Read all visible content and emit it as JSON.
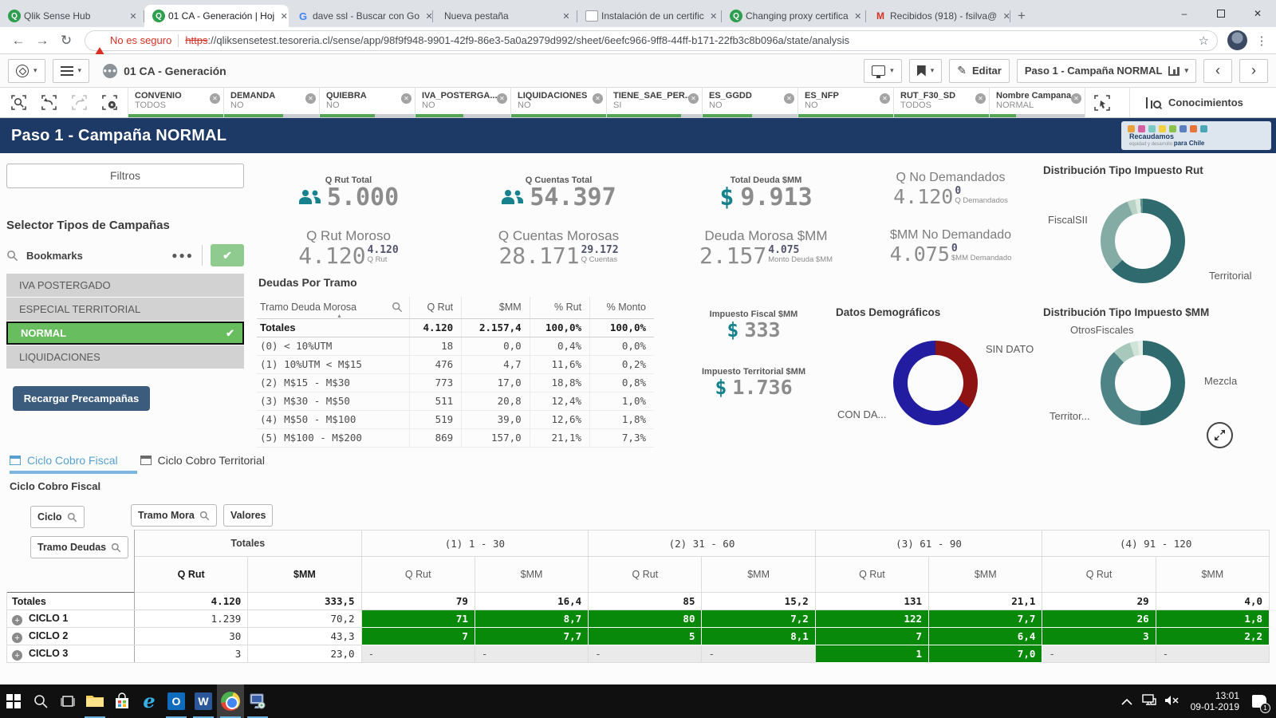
{
  "browser": {
    "tabs": [
      {
        "title": "Qlik Sense Hub",
        "icon": "qlik",
        "active": false
      },
      {
        "title": "01 CA - Generación | Hoj",
        "icon": "qlik",
        "active": true
      },
      {
        "title": "dave ssl - Buscar con Go",
        "icon": "google",
        "active": false
      },
      {
        "title": "Nueva pestaña",
        "icon": "none",
        "active": false
      },
      {
        "title": "Instalación de un certific",
        "icon": "doc",
        "active": false
      },
      {
        "title": "Changing proxy certifica",
        "icon": "qlik",
        "active": false
      },
      {
        "title": "Recibidos (918) - fsilva@",
        "icon": "gmail",
        "active": false
      }
    ],
    "security_warning": "No es seguro",
    "url_scheme": "https",
    "url_rest": "://qliksensetest.tesoreria.cl/sense/app/98f9f948-9901-42f9-86e3-5a0a2979d992/sheet/6eefc966-9ff8-44ff-b171-22fb3c8b096a/state/analysis"
  },
  "toolbar": {
    "app_title": "01 CA - Generación",
    "edit_label": "Editar",
    "sheet_label": "Paso 1 - Campaña NORMAL",
    "insights_label": "Conocimientos"
  },
  "selections": [
    {
      "field": "CONVENIO",
      "value": "TODOS",
      "bar": 100
    },
    {
      "field": "DEMANDA",
      "value": "NO",
      "bar": 62
    },
    {
      "field": "QUIEBRA",
      "value": "NO",
      "bar": 58
    },
    {
      "field": "IVA_POSTERGA...",
      "value": "NO",
      "bar": 50
    },
    {
      "field": "LIQUIDACIONES",
      "value": "NO",
      "bar": 100
    },
    {
      "field": "TIENE_SAE_PER...",
      "value": "SI",
      "bar": 78
    },
    {
      "field": "ES_GGDD",
      "value": "NO",
      "bar": 52
    },
    {
      "field": "ES_NFP",
      "value": "NO",
      "bar": 100
    },
    {
      "field": "RUT_F30_SD",
      "value": "TODOS",
      "bar": 100
    },
    {
      "field": "Nombre Campana",
      "value": "NORMAL",
      "bar": 28
    }
  ],
  "header": {
    "title": "Paso 1 - Campaña NORMAL",
    "logo_line1": "Recaudamos",
    "logo_line2": "equidad y desarrollo ",
    "logo_line3": "para Chile"
  },
  "sidebar": {
    "filtros_label": "Filtros",
    "selector_title": "Selector Tipos de Campañas",
    "bookmarks_label": "Bookmarks",
    "items": [
      {
        "label": "IVA POSTERGADO",
        "selected": false
      },
      {
        "label": "ESPECIAL TERRITORIAL",
        "selected": false
      },
      {
        "label": "NORMAL",
        "selected": true
      },
      {
        "label": "LIQUIDACIONES",
        "selected": false
      }
    ],
    "recargar_label": "Recargar Precampañas"
  },
  "kpis": {
    "q_rut_total": {
      "label": "Q Rut Total",
      "value": "5.000"
    },
    "q_rut_moroso": {
      "label": "Q Rut Moroso",
      "value": "4.120",
      "sup": "4.120",
      "sup_label": "Q Rut"
    },
    "q_cuentas_total": {
      "label": "Q Cuentas Total",
      "value": "54.397"
    },
    "q_cuentas_morosas": {
      "label": "Q Cuentas Morosas",
      "value": "28.171",
      "sup": "29.172",
      "sup_label": "Q Cuentas"
    },
    "total_deuda": {
      "label": "Total Deuda $MM",
      "prefix": "$",
      "value": "9.913"
    },
    "deuda_morosa": {
      "label": "Deuda Morosa $MM",
      "value": "2.157",
      "sup": "4.075",
      "sup_label": "Monto Deuda $MM"
    },
    "q_no_demandados": {
      "label": "Q No Demandados",
      "value": "4.120",
      "sup": "0",
      "sup_label": "Q Demandados"
    },
    "mm_no_demandado": {
      "label": "$MM No Demandado",
      "value": "4.075",
      "sup": "0",
      "sup_label": "$MM Demandado"
    },
    "impuesto_fiscal": {
      "label": "Impuesto Fiscal $MM",
      "prefix": "$",
      "value": "333"
    },
    "impuesto_territorial": {
      "label": "Impuesto Territorial $MM",
      "prefix": "$",
      "value": "1.736"
    }
  },
  "deudas_table": {
    "title": "Deudas Por Tramo",
    "columns": [
      "Tramo Deuda Morosa",
      "Q Rut",
      "$MM",
      "% Rut",
      "% Monto"
    ],
    "totals": [
      "Totales",
      "4.120",
      "2.157,4",
      "100,0%",
      "100,0%"
    ],
    "rows": [
      [
        "(0) < 10%UTM",
        "18",
        "0,0",
        "0,4%",
        "0,0%"
      ],
      [
        "(1) 10%UTM < M$15",
        "476",
        "4,7",
        "11,6%",
        "0,2%"
      ],
      [
        "(2) M$15 - M$30",
        "773",
        "17,0",
        "18,8%",
        "0,8%"
      ],
      [
        "(3) M$30 - M$50",
        "511",
        "20,8",
        "12,4%",
        "1,0%"
      ],
      [
        "(4) M$50 - M$100",
        "519",
        "39,0",
        "12,6%",
        "1,8%"
      ],
      [
        "(5) M$100 - M$200",
        "869",
        "157,0",
        "21,1%",
        "7,3%"
      ]
    ]
  },
  "charts": {
    "impuesto_rut": {
      "type": "donut",
      "title": "Distribución Tipo Impuesto Rut",
      "segments": [
        {
          "label": "Territorial",
          "value": 63,
          "color": "#2e6a6e"
        },
        {
          "label": "FiscalSII",
          "value": 31,
          "color": "#84aca4"
        },
        {
          "label": "",
          "value": 3,
          "color": "#b9d3c6"
        },
        {
          "label": "",
          "value": 2,
          "color": "#dbe8de"
        },
        {
          "label": "",
          "value": 1,
          "color": "#5f9193"
        }
      ]
    },
    "demografico": {
      "type": "donut",
      "title": "Datos Demográficos",
      "segments": [
        {
          "label": "SIN DATO",
          "value": 35,
          "color": "#8e1414"
        },
        {
          "label": "CON DA...",
          "value": 65,
          "color": "#211ca0"
        }
      ]
    },
    "impuesto_mm": {
      "type": "donut",
      "title": "Distribución Tipo Impuesto $MM",
      "segments": [
        {
          "label": "Mezcla",
          "value": 51,
          "color": "#2e6a6e"
        },
        {
          "label": "Territor...",
          "value": 37,
          "color": "#4f8487"
        },
        {
          "label": "OtrosFiscales",
          "value": 7,
          "color": "#a7c8bb"
        },
        {
          "label": "",
          "value": 3,
          "color": "#cfe3d8"
        },
        {
          "label": "",
          "value": 2,
          "color": "#e4efe8"
        }
      ]
    }
  },
  "ciclo": {
    "tabs": [
      {
        "label": "Ciclo Cobro Fiscal",
        "active": true
      },
      {
        "label": "Ciclo Cobro Territorial",
        "active": false
      }
    ],
    "section_title": "Ciclo Cobro Fiscal",
    "row_dims": [
      "Ciclo",
      "Tramo Deudas"
    ],
    "col_dims": [
      "Tramo Mora",
      "Valores"
    ],
    "col_groups": [
      "Totales",
      "(1) 1 - 30",
      "(2) 31 - 60",
      "(3) 61 - 90",
      "(4) 91 - 120"
    ],
    "sub_cols": [
      "Q Rut",
      "$MM"
    ],
    "rows": [
      {
        "label": "Totales",
        "expandable": false,
        "cells": [
          {
            "v": "4.120"
          },
          {
            "v": "333,5"
          },
          {
            "v": "79"
          },
          {
            "v": "16,4"
          },
          {
            "v": "85"
          },
          {
            "v": "15,2"
          },
          {
            "v": "131"
          },
          {
            "v": "21,1"
          },
          {
            "v": "29"
          },
          {
            "v": "4,0"
          }
        ]
      },
      {
        "label": "CICLO 1",
        "expandable": true,
        "cells": [
          {
            "v": "1.239"
          },
          {
            "v": "70,2"
          },
          {
            "v": "71",
            "g": 1
          },
          {
            "v": "8,7",
            "g": 1
          },
          {
            "v": "80",
            "g": 1
          },
          {
            "v": "7,2",
            "g": 1
          },
          {
            "v": "122",
            "g": 1
          },
          {
            "v": "7,7",
            "g": 1
          },
          {
            "v": "26",
            "g": 1
          },
          {
            "v": "1,8",
            "g": 1
          }
        ]
      },
      {
        "label": "CICLO 2",
        "expandable": true,
        "cells": [
          {
            "v": "30"
          },
          {
            "v": "43,3"
          },
          {
            "v": "7",
            "g": 1
          },
          {
            "v": "7,7",
            "g": 1
          },
          {
            "v": "5",
            "g": 1
          },
          {
            "v": "8,1",
            "g": 1
          },
          {
            "v": "7",
            "g": 1
          },
          {
            "v": "6,4",
            "g": 1
          },
          {
            "v": "3",
            "g": 1
          },
          {
            "v": "2,2",
            "g": 1
          }
        ]
      },
      {
        "label": "CICLO 3",
        "expandable": true,
        "cells": [
          {
            "v": "3"
          },
          {
            "v": "23,0"
          },
          {
            "v": "-",
            "dash": 1
          },
          {
            "v": "-",
            "dash": 1
          },
          {
            "v": "-",
            "dash": 1
          },
          {
            "v": "-",
            "dash": 1
          },
          {
            "v": "1",
            "g": 1
          },
          {
            "v": "7,0",
            "g": 1
          },
          {
            "v": "-",
            "dash": 1
          },
          {
            "v": "-",
            "dash": 1
          }
        ]
      }
    ]
  },
  "taskbar": {
    "icons": [
      "start",
      "search",
      "task-view",
      "file-explorer",
      "store",
      "internet-explorer",
      "outlook",
      "word",
      "chrome",
      "remote-desktop"
    ],
    "time": "13:01",
    "date": "09-01-2019",
    "badge": "1"
  }
}
